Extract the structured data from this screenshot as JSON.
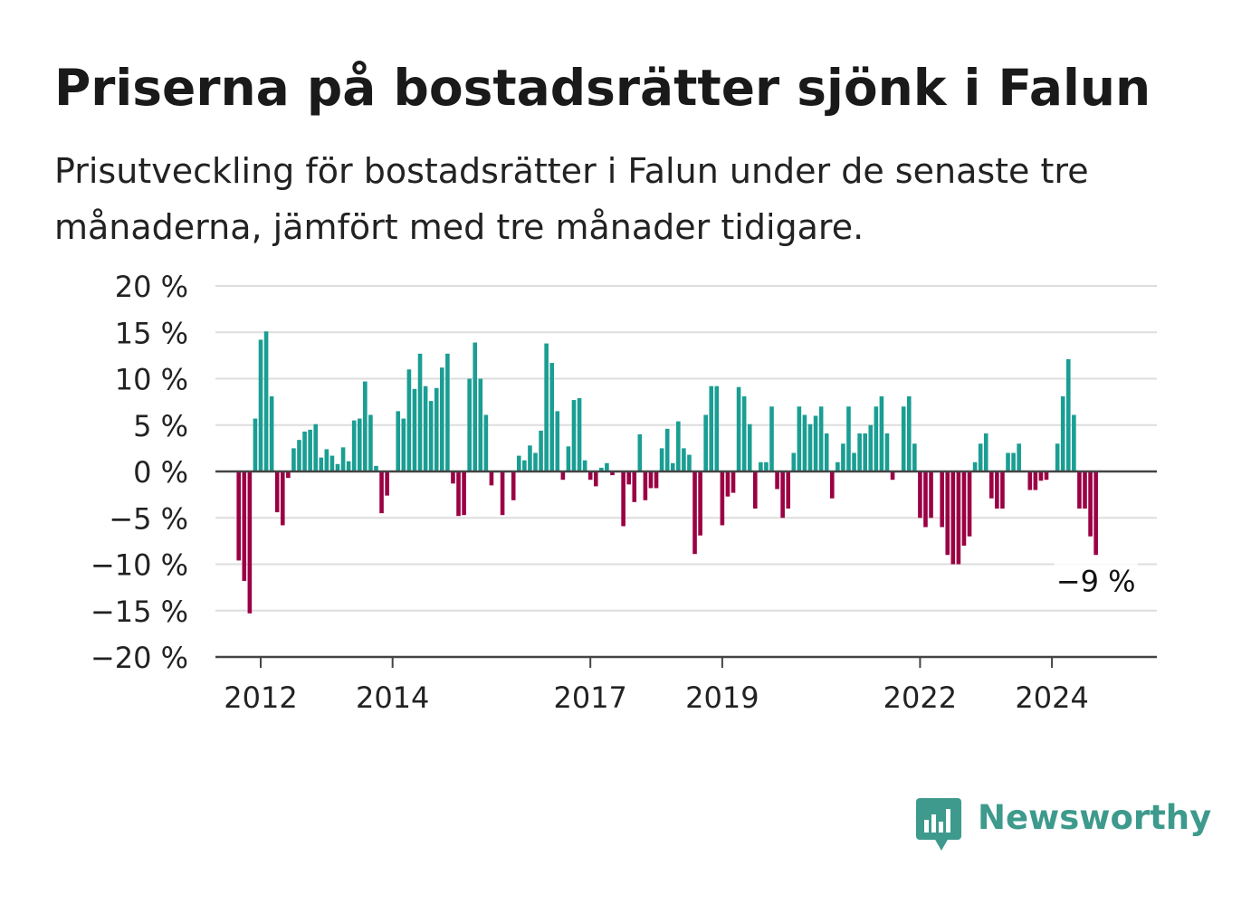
{
  "title": "Priserna på bostadsrätter sjönk i Falun",
  "subtitle": "Prisutveckling för bostadsrätter i Falun under de senaste tre månaderna, jämfört med tre månader tidigare.",
  "logo": {
    "name": "Newsworthy",
    "icon": "bar-chart-speech-bubble-icon",
    "color": "#3d9a8c"
  },
  "colors": {
    "positive": "#1a9e93",
    "negative": "#9b0044",
    "grid": "#dddddd",
    "axis": "#444444",
    "text": "#222222"
  },
  "chart_data": {
    "type": "bar",
    "title": "Priserna på bostadsrätter sjönk i Falun",
    "subtitle": "Prisutveckling för bostadsrätter i Falun under de senaste tre månaderna, jämfört med tre månader tidigare.",
    "unit": "%",
    "ylim": [
      -20,
      20
    ],
    "yticks": [
      20,
      15,
      10,
      5,
      0,
      -5,
      -10,
      -15,
      -20
    ],
    "ytick_labels": [
      "20 %",
      "15 %",
      "10 %",
      "5 %",
      "0 %",
      "−5 %",
      "−10 %",
      "−15 %",
      "−20 %"
    ],
    "xticks": [
      "2012",
      "2014",
      "2017",
      "2019",
      "2022",
      "2024"
    ],
    "grid": true,
    "x_start": "2011-09",
    "frequency": "monthly",
    "values": [
      -9.6,
      -11.8,
      -15.3,
      5.7,
      14.2,
      15.1,
      8.1,
      -4.4,
      -5.8,
      -0.7,
      2.5,
      3.4,
      4.3,
      4.5,
      5.1,
      1.5,
      2.4,
      1.7,
      0.8,
      2.6,
      1.1,
      5.5,
      5.7,
      9.7,
      6.1,
      0.6,
      -4.5,
      -2.6,
      0,
      6.5,
      5.7,
      11,
      8.9,
      12.7,
      9.2,
      7.6,
      9,
      11.2,
      12.7,
      -1.3,
      -4.8,
      -4.7,
      10,
      13.9,
      10,
      6.1,
      -1.5,
      0,
      -4.7,
      0,
      -3.1,
      1.7,
      1.2,
      2.8,
      2,
      4.4,
      13.8,
      11.7,
      6.5,
      -0.9,
      2.7,
      7.7,
      7.9,
      1.2,
      -0.9,
      -1.6,
      0.4,
      0.9,
      -0.4,
      0,
      -5.9,
      -1.4,
      -3.3,
      4,
      -3.1,
      -1.8,
      -1.8,
      2.5,
      4.6,
      0.9,
      5.4,
      2.5,
      1.8,
      -8.9,
      -6.9,
      6.1,
      9.2,
      9.2,
      -5.8,
      -2.7,
      -2.3,
      9.1,
      8.1,
      5.1,
      -4,
      1,
      1,
      7,
      -1.9,
      -5,
      -4,
      2,
      7,
      6.1,
      5.1,
      6,
      7,
      4.1,
      -2.9,
      1,
      3,
      7,
      2,
      4.1,
      4.1,
      5,
      7,
      8.1,
      4.1,
      -0.9,
      0,
      7,
      8.1,
      3,
      -5,
      -6,
      -5,
      0,
      -6,
      -9,
      -10,
      -10,
      -8,
      -7,
      1,
      3,
      4.1,
      -2.9,
      -4,
      -4,
      2,
      2,
      3,
      0,
      -2,
      -2,
      -1,
      -0.9,
      0,
      3,
      8.1,
      12.1,
      6.1,
      -4,
      -4,
      -7,
      -9
    ],
    "last_value_label": "−9 %"
  }
}
